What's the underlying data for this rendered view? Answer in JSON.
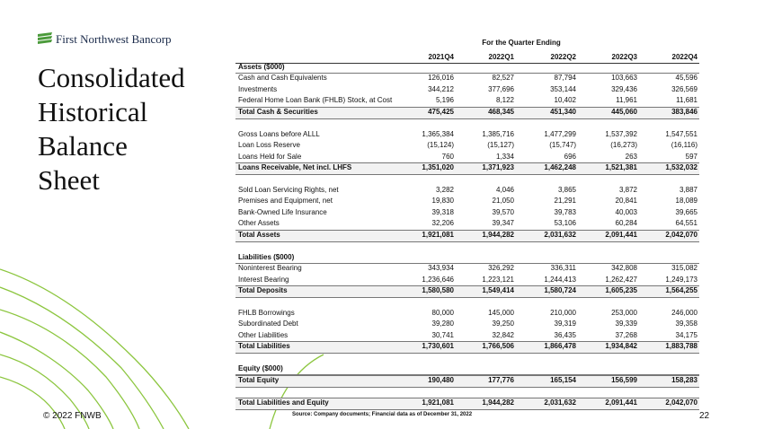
{
  "header": {
    "logo": "First Northwest Bancorp",
    "title_lines": [
      "Consolidated",
      "Historical",
      "Balance",
      "Sheet"
    ]
  },
  "table": {
    "period_label": "For the Quarter Ending",
    "columns": [
      "2021Q4",
      "2022Q1",
      "2022Q2",
      "2022Q3",
      "2022Q4"
    ],
    "groups": [
      {
        "heading": "Assets ($000)",
        "rows": [
          {
            "label": "Cash and Cash Equivalents",
            "values": [
              "126,016",
              "82,527",
              "87,794",
              "103,663",
              "45,596"
            ]
          },
          {
            "label": "Investments",
            "values": [
              "344,212",
              "377,696",
              "353,144",
              "329,436",
              "326,569"
            ]
          },
          {
            "label": "Federal Home Loan Bank (FHLB) Stock, at Cost",
            "values": [
              "5,196",
              "8,122",
              "10,402",
              "11,961",
              "11,681"
            ]
          }
        ],
        "total": {
          "label": "Total Cash & Securities",
          "values": [
            "475,425",
            "468,345",
            "451,340",
            "445,060",
            "383,846"
          ]
        }
      },
      {
        "rows": [
          {
            "label": "Gross Loans before ALLL",
            "values": [
              "1,365,384",
              "1,385,716",
              "1,477,299",
              "1,537,392",
              "1,547,551"
            ]
          },
          {
            "label": "Loan Loss Reserve",
            "values": [
              "(15,124)",
              "(15,127)",
              "(15,747)",
              "(16,273)",
              "(16,116)"
            ]
          },
          {
            "label": "Loans Held for Sale",
            "values": [
              "760",
              "1,334",
              "696",
              "263",
              "597"
            ]
          }
        ],
        "total": {
          "label": "Loans Receivable, Net incl. LHFS",
          "values": [
            "1,351,020",
            "1,371,923",
            "1,462,248",
            "1,521,381",
            "1,532,032"
          ]
        }
      },
      {
        "rows": [
          {
            "label": "Sold Loan Servicing Rights, net",
            "values": [
              "3,282",
              "4,046",
              "3,865",
              "3,872",
              "3,887"
            ]
          },
          {
            "label": "Premises and Equipment, net",
            "values": [
              "19,830",
              "21,050",
              "21,291",
              "20,841",
              "18,089"
            ]
          },
          {
            "label": "Bank-Owned Life Insurance",
            "values": [
              "39,318",
              "39,570",
              "39,783",
              "40,003",
              "39,665"
            ]
          },
          {
            "label": "Other Assets",
            "values": [
              "32,206",
              "39,347",
              "53,106",
              "60,284",
              "64,551"
            ]
          }
        ],
        "total": {
          "label": "Total Assets",
          "values": [
            "1,921,081",
            "1,944,282",
            "2,031,632",
            "2,091,441",
            "2,042,070"
          ]
        }
      },
      {
        "heading": "Liabilities ($000)",
        "rows": [
          {
            "label": "Noninterest Bearing",
            "values": [
              "343,934",
              "326,292",
              "336,311",
              "342,808",
              "315,082"
            ]
          },
          {
            "label": "Interest Bearing",
            "values": [
              "1,236,646",
              "1,223,121",
              "1,244,413",
              "1,262,427",
              "1,249,173"
            ]
          }
        ],
        "total": {
          "label": "Total Deposits",
          "values": [
            "1,580,580",
            "1,549,414",
            "1,580,724",
            "1,605,235",
            "1,564,255"
          ]
        }
      },
      {
        "rows": [
          {
            "label": "FHLB Borrowings",
            "values": [
              "80,000",
              "145,000",
              "210,000",
              "253,000",
              "246,000"
            ]
          },
          {
            "label": "Subordinated Debt",
            "values": [
              "39,280",
              "39,250",
              "39,319",
              "39,339",
              "39,358"
            ]
          },
          {
            "label": "Other Liabilities",
            "values": [
              "30,741",
              "32,842",
              "36,435",
              "37,268",
              "34,175"
            ]
          }
        ],
        "total": {
          "label": "Total Liabilities",
          "values": [
            "1,730,601",
            "1,766,506",
            "1,866,478",
            "1,934,842",
            "1,883,788"
          ]
        }
      },
      {
        "heading": "Equity ($000)",
        "rows": [],
        "total": {
          "label": "Total Equity",
          "values": [
            "190,480",
            "177,776",
            "165,154",
            "156,599",
            "158,283"
          ]
        }
      },
      {
        "rows": [],
        "total": {
          "label": "Total Liabilities and Equity",
          "values": [
            "1,921,081",
            "1,944,282",
            "2,031,632",
            "2,091,441",
            "2,042,070"
          ]
        }
      }
    ]
  },
  "footer": {
    "copyright": "© 2022 FNWB",
    "source": "Source: Company documents; Financial data as of December 31, 2022",
    "page": "22"
  }
}
